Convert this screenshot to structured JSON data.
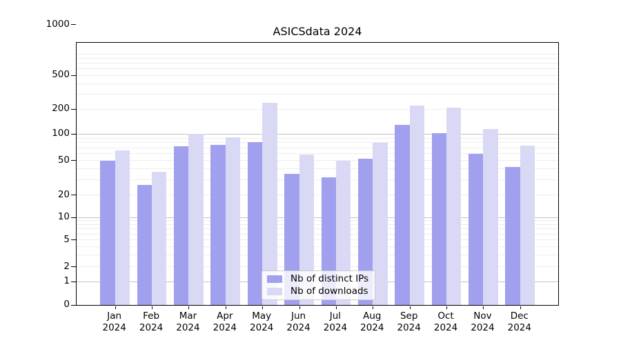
{
  "chart_data": {
    "type": "bar",
    "title": "ASICSdata 2024",
    "yscale": "symlog",
    "grid": true,
    "ylim": [
      0,
      1250
    ],
    "yticks": [
      0,
      1,
      2,
      5,
      10,
      20,
      50,
      100,
      200,
      500,
      1000
    ],
    "months": [
      "Jan",
      "Feb",
      "Mar",
      "Apr",
      "May",
      "Jun",
      "Jul",
      "Aug",
      "Sep",
      "Oct",
      "Nov",
      "Dec"
    ],
    "year": "2024",
    "categories": [
      "Jan 2024",
      "Feb 2024",
      "Mar 2024",
      "Apr 2024",
      "May 2024",
      "Jun 2024",
      "Jul 2024",
      "Aug 2024",
      "Sep 2024",
      "Oct 2024",
      "Nov 2024",
      "Dec 2024"
    ],
    "series": [
      {
        "name": "Nb of distinct IPs",
        "color": "#a0a0ee",
        "values": [
          50,
          26,
          72,
          75,
          81,
          35,
          32,
          52,
          130,
          103,
          60,
          42
        ]
      },
      {
        "name": "Nb of downloads",
        "color": "#d9d9f5",
        "values": [
          65,
          37,
          100,
          92,
          240,
          58,
          50,
          80,
          222,
          207,
          116,
          74
        ]
      }
    ],
    "legend_position": "lower center"
  }
}
